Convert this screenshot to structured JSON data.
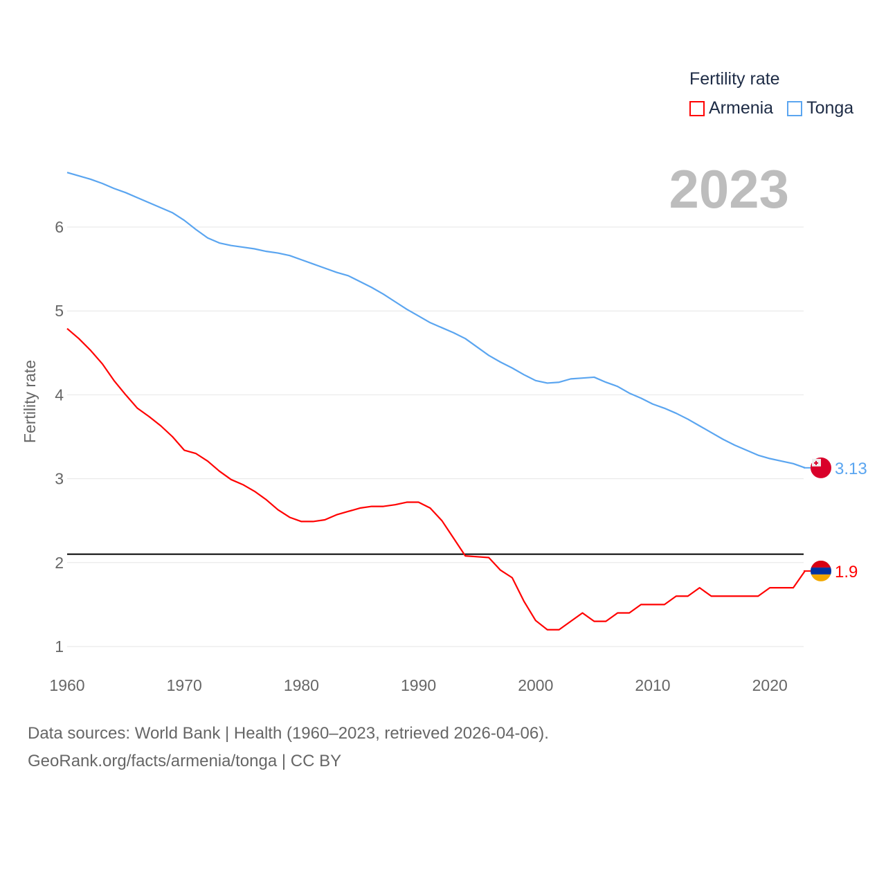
{
  "legend": {
    "title": "Fertility rate",
    "items": [
      {
        "label": "Armenia",
        "color": "#ff0000"
      },
      {
        "label": "Tonga",
        "color": "#5aa5f0"
      }
    ]
  },
  "year_label": "2023",
  "footer": {
    "line1": "Data sources: World Bank | Health (1960–2023, retrieved 2026-04-06).",
    "line2": "GeoRank.org/facts/armenia/tonga | CC BY"
  },
  "chart_data": {
    "type": "line",
    "title": "",
    "xlabel": "",
    "ylabel": "Fertility rate",
    "xlim": [
      1960,
      2023
    ],
    "ylim": [
      0.8,
      6.8
    ],
    "xticks": [
      "1960",
      "1970",
      "1980",
      "1990",
      "2000",
      "2010",
      "2020"
    ],
    "yticks": [
      "1",
      "2",
      "3",
      "4",
      "5",
      "6"
    ],
    "grid": true,
    "legend_position": "top-right",
    "reference_line": {
      "y": 2.1,
      "color": "#000000"
    },
    "x": [
      1960,
      1961,
      1962,
      1963,
      1964,
      1965,
      1966,
      1967,
      1968,
      1969,
      1970,
      1971,
      1972,
      1973,
      1974,
      1975,
      1976,
      1977,
      1978,
      1979,
      1980,
      1981,
      1982,
      1983,
      1984,
      1985,
      1986,
      1987,
      1988,
      1989,
      1990,
      1991,
      1992,
      1993,
      1994,
      1995,
      1996,
      1997,
      1998,
      1999,
      2000,
      2001,
      2002,
      2003,
      2004,
      2005,
      2006,
      2007,
      2008,
      2009,
      2010,
      2011,
      2012,
      2013,
      2014,
      2015,
      2016,
      2017,
      2018,
      2019,
      2020,
      2021,
      2022,
      2023
    ],
    "series": [
      {
        "name": "Armenia",
        "color": "#ff0000",
        "end_label": "1.9",
        "values": [
          4.79,
          4.67,
          4.53,
          4.37,
          4.17,
          4.0,
          3.84,
          3.74,
          3.63,
          3.5,
          3.34,
          3.3,
          3.21,
          3.09,
          2.99,
          2.93,
          2.85,
          2.75,
          2.63,
          2.54,
          2.49,
          2.49,
          2.51,
          2.57,
          2.61,
          2.65,
          2.67,
          2.67,
          2.69,
          2.72,
          2.72,
          2.65,
          2.5,
          2.29,
          2.08,
          2.07,
          2.06,
          1.91,
          1.82,
          1.54,
          1.31,
          1.2,
          1.2,
          1.3,
          1.4,
          1.3,
          1.3,
          1.4,
          1.4,
          1.5,
          1.5,
          1.5,
          1.6,
          1.6,
          1.7,
          1.6,
          1.6,
          1.6,
          1.6,
          1.6,
          1.7,
          1.7,
          1.7,
          1.9
        ]
      },
      {
        "name": "Tonga",
        "color": "#5aa5f0",
        "end_label": "3.13",
        "values": [
          6.65,
          6.61,
          6.57,
          6.52,
          6.46,
          6.41,
          6.35,
          6.29,
          6.23,
          6.17,
          6.08,
          5.97,
          5.87,
          5.81,
          5.78,
          5.76,
          5.74,
          5.71,
          5.69,
          5.66,
          5.61,
          5.56,
          5.51,
          5.46,
          5.42,
          5.35,
          5.28,
          5.2,
          5.11,
          5.02,
          4.94,
          4.86,
          4.8,
          4.74,
          4.67,
          4.57,
          4.47,
          4.39,
          4.32,
          4.24,
          4.17,
          4.14,
          4.15,
          4.19,
          4.2,
          4.21,
          4.15,
          4.1,
          4.02,
          3.96,
          3.89,
          3.84,
          3.78,
          3.71,
          3.63,
          3.55,
          3.47,
          3.4,
          3.34,
          3.28,
          3.24,
          3.21,
          3.18,
          3.13
        ]
      }
    ]
  }
}
